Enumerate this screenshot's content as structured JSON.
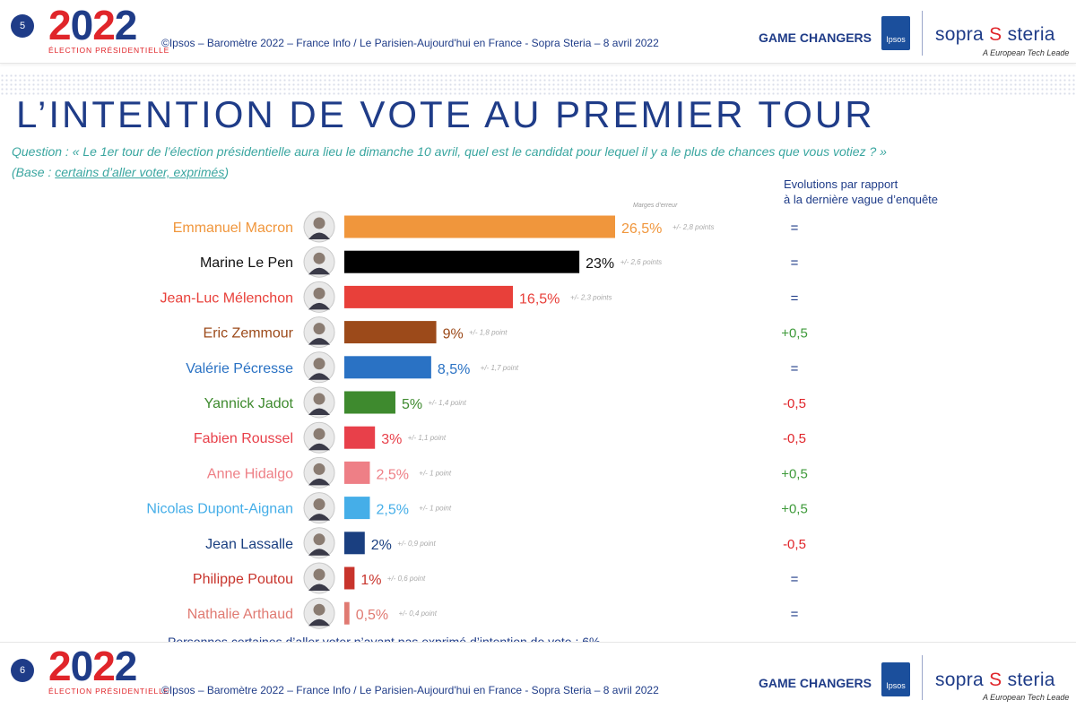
{
  "header": {
    "page_number": "5",
    "logo_year_red1": "2",
    "logo_year_blue": "0",
    "logo_year_red2": "2",
    "logo_year_blue2": "2",
    "logo_subtitle": "ÉLECTION PRÉSIDENTIELLE",
    "copyright": "©Ipsos – Baromètre 2022 – France Info / Le Parisien-Aujourd'hui en France - Sopra Steria – 8 avril 2022",
    "game_changers": "GAME CHANGERS",
    "ipsos_label": "Ipsos",
    "sopra_word1": "sopra",
    "sopra_mark": "S",
    "sopra_word2": "steria",
    "tagline": "A European Tech Leade"
  },
  "footer": {
    "page_number": "6",
    "copyright": "©Ipsos – Baromètre 2022 – France Info / Le Parisien-Aujourd'hui en France - Sopra Steria – 8 avril 2022",
    "game_changers": "GAME CHANGERS",
    "ipsos_label": "Ipsos",
    "tagline": "A European Tech Leade"
  },
  "title": "L’INTENTION DE VOTE AU PREMIER TOUR",
  "question": "Question : « Le 1er tour de l’élection présidentielle aura lieu le dimanche 10 avril, quel est le candidat pour lequel il y a le plus de chances que vous votiez ? »",
  "base_prefix": "(Base : ",
  "base_link": "certains d’aller voter, exprimés",
  "base_suffix": ")",
  "evolution_header_line1": "Evolutions par rapport",
  "evolution_header_line2": "à la dernière vague d’enquête",
  "margins_label": "Marges d’erreur",
  "footnote": "Personnes certaines d’aller voter n’ayant pas exprimé d’intention de vote : 6%",
  "chart_data": {
    "type": "bar",
    "orientation": "horizontal",
    "categories": [
      "Emmanuel Macron",
      "Marine Le Pen",
      "Jean-Luc Mélenchon",
      "Eric Zemmour",
      "Valérie Pécresse",
      "Yannick Jadot",
      "Fabien Roussel",
      "Anne Hidalgo",
      "Nicolas Dupont-Aignan",
      "Jean Lassalle",
      "Philippe Poutou",
      "Nathalie Arthaud"
    ],
    "values": [
      26.5,
      23,
      16.5,
      9,
      8.5,
      5,
      3,
      2.5,
      2.5,
      2,
      1,
      0.5
    ],
    "value_labels": [
      "26,5%",
      "23%",
      "16,5%",
      "9%",
      "8,5%",
      "5%",
      "3%",
      "2,5%",
      "2,5%",
      "2%",
      "1%",
      "0,5%"
    ],
    "margins": [
      "+/- 2,8 points",
      "+/- 2,6 points",
      "+/- 2,3 points",
      "+/- 1,8 point",
      "+/- 1,7 point",
      "+/- 1,4 point",
      "+/- 1,1 point",
      "+/- 1 point",
      "+/- 1 point",
      "+/- 0,9 point",
      "+/- 0,6 point",
      "+/- 0,4 point"
    ],
    "evolutions": [
      "=",
      "=",
      "=",
      "+0,5",
      "=",
      "-0,5",
      "-0,5",
      "+0,5",
      "+0,5",
      "-0,5",
      "=",
      "="
    ],
    "colors": [
      "#f0963c",
      "#000000",
      "#e8403a",
      "#9c4a1a",
      "#2a72c4",
      "#3e8a2e",
      "#e8404a",
      "#ee7f86",
      "#45aee8",
      "#1a3f80",
      "#c8342c",
      "#e07a72"
    ],
    "name_colors": [
      "#f0963c",
      "#111111",
      "#e8403a",
      "#9c4a1a",
      "#2a72c4",
      "#3e8a2e",
      "#e8404a",
      "#ee7f86",
      "#45aee8",
      "#1a3f80",
      "#c8342c",
      "#e07a72"
    ],
    "evolution_colors": {
      "=": "#1f3c88",
      "+": "#3e9a3a",
      "-": "#e0252a"
    },
    "xlim": [
      0,
      26.5
    ],
    "grid": false,
    "legend": "none"
  }
}
